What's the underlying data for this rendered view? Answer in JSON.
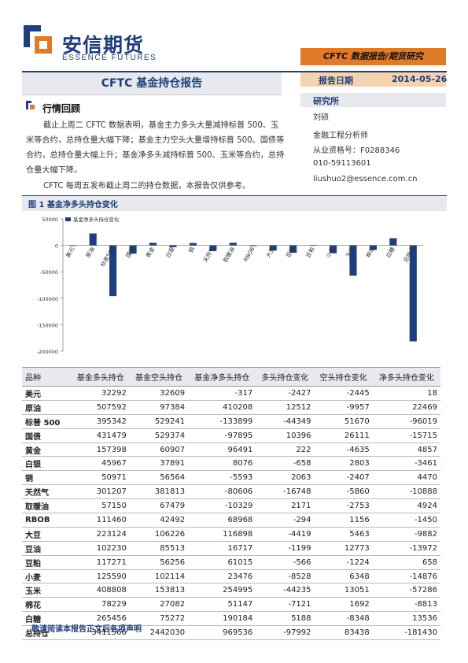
{
  "brand": {
    "name_cn": "安信期货",
    "name_en": "ESSENCE FUTURES"
  },
  "header": {
    "banner": "CFTC 数据报告/期货研究",
    "report_title": "CFTC 基金持仓报告",
    "date_label": "报告日期",
    "date_value": "2014-05-26"
  },
  "sidebar": {
    "institute_label": "研究所",
    "author": "刘硕",
    "role": "金融工程分析师",
    "cert": "从业资格号：F0288346",
    "phone": "010-59113601",
    "email": "liushuo2@essence.com.cn"
  },
  "review": {
    "title": "行情回顾",
    "para1": "截止上周二 CFTC 数据表明，基金主力多头大量减持标普 500、玉米等合约，总持仓量大幅下降；基金主力空头大量增持标普 500、国债等合约，总持仓量大幅上升；基金净多头减持标普 500、玉米等合约，总持仓量大幅下降。",
    "para2": "CFTC 每周五发布截止周二的持仓数据，本报告仅供参考。"
  },
  "figure": {
    "title": "图 1 基金净多头持仓变化"
  },
  "chart_data": {
    "type": "bar",
    "categories": [
      "美元",
      "原油",
      "标普500",
      "国债",
      "黄金",
      "白银",
      "铜",
      "天然气",
      "取暖油",
      "RBOB",
      "大豆",
      "豆油",
      "豆粕",
      "小麦",
      "玉米",
      "棉花",
      "白糖",
      "总持仓"
    ],
    "series": [
      {
        "name": "基金净多头持仓变化",
        "values": [
          18,
          22469,
          -96019,
          -15715,
          4857,
          -3461,
          4470,
          -10888,
          4924,
          -1450,
          -9882,
          -13972,
          658,
          -14876,
          -57286,
          -8813,
          13536,
          -181430
        ]
      }
    ],
    "ylim": [
      -200000,
      50000
    ],
    "yticks": [
      "50000",
      "0",
      "-50000",
      "-100000",
      "-150000",
      "-200000"
    ],
    "color": "#1f3f7a",
    "legend": "top-left",
    "grid": false
  },
  "table": {
    "headers": [
      "品种",
      "基金多头持仓",
      "基金空头持仓",
      "基金净多头持仓",
      "多头持仓变化",
      "空头持仓变化",
      "净多头持仓变化"
    ],
    "rows": [
      [
        "美元",
        "32292",
        "32609",
        "-317",
        "-2427",
        "-2445",
        "18"
      ],
      [
        "原油",
        "507592",
        "97384",
        "410208",
        "12512",
        "-9957",
        "22469"
      ],
      [
        "标普 500",
        "395342",
        "529241",
        "-133899",
        "-44349",
        "51670",
        "-96019"
      ],
      [
        "国债",
        "431479",
        "529374",
        "-97895",
        "10396",
        "26111",
        "-15715"
      ],
      [
        "黄金",
        "157398",
        "60907",
        "96491",
        "222",
        "-4635",
        "4857"
      ],
      [
        "白银",
        "45967",
        "37891",
        "8076",
        "-658",
        "2803",
        "-3461"
      ],
      [
        "铜",
        "50971",
        "56564",
        "-5593",
        "2063",
        "-2407",
        "4470"
      ],
      [
        "天然气",
        "301207",
        "381813",
        "-80606",
        "-16748",
        "-5860",
        "-10888"
      ],
      [
        "取暖油",
        "57150",
        "67479",
        "-10329",
        "2171",
        "-2753",
        "4924"
      ],
      [
        "RBOB",
        "111460",
        "42492",
        "68968",
        "-294",
        "1156",
        "-1450"
      ],
      [
        "大豆",
        "223124",
        "106226",
        "116898",
        "-4419",
        "5463",
        "-9882"
      ],
      [
        "豆油",
        "102230",
        "85513",
        "16717",
        "-1199",
        "12773",
        "-13972"
      ],
      [
        "豆粕",
        "117271",
        "56256",
        "61015",
        "-566",
        "-1224",
        "658"
      ],
      [
        "小麦",
        "125590",
        "102114",
        "23476",
        "-8528",
        "6348",
        "-14876"
      ],
      [
        "玉米",
        "408808",
        "153813",
        "254995",
        "-44235",
        "13051",
        "-57286"
      ],
      [
        "棉花",
        "78229",
        "27082",
        "51147",
        "-7121",
        "1692",
        "-8813"
      ],
      [
        "白糖",
        "265456",
        "75272",
        "190184",
        "5188",
        "-8348",
        "13536"
      ],
      [
        "总持仓",
        "3411566",
        "2442030",
        "969536",
        "-97992",
        "83438",
        "-181430"
      ]
    ]
  },
  "footer": "敬请阅读本报告正文后各项声明",
  "colors": {
    "navy": "#1f3f7a",
    "orange": "#e07a2b",
    "light_gray": "#e7e9ee"
  }
}
